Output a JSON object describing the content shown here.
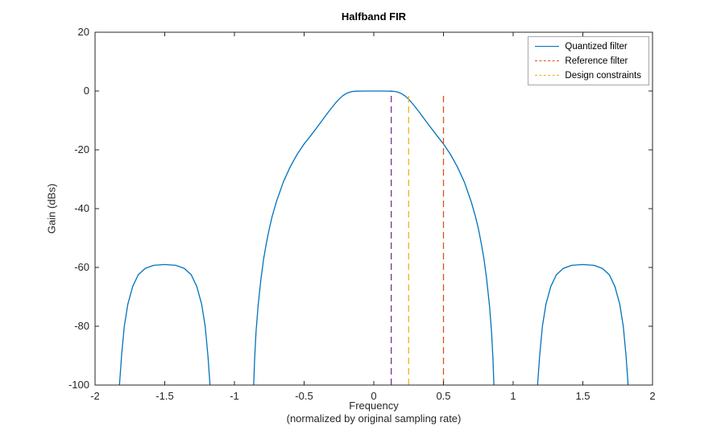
{
  "title": "Halfband FIR",
  "axes": {
    "ylabel": "Gain (dBs)",
    "xlabel_line1": "Frequency",
    "xlabel_line2": "(normalized by original sampling rate)"
  },
  "legend": [
    {
      "label": "Quantized filter",
      "color": "#0072BD",
      "style": "solid"
    },
    {
      "label": "Reference filter",
      "color": "#D95319",
      "style": "dashed"
    },
    {
      "label": "Design constraints",
      "color": "#EDB120",
      "style": "dashed"
    }
  ],
  "chart_data": {
    "type": "line",
    "title": "Halfband FIR",
    "xlabel": "Frequency (normalized by original sampling rate)",
    "ylabel": "Gain (dBs)",
    "xlim": [
      -2,
      2
    ],
    "ylim": [
      -100,
      20
    ],
    "xticks": [
      -2,
      -1.5,
      -1,
      -0.5,
      0,
      0.5,
      1,
      1.5,
      2
    ],
    "xtick_labels": [
      "-2",
      "-1.5",
      "-1",
      "-0.5",
      "0",
      "0.5",
      "1",
      "1.5",
      "2"
    ],
    "yticks": [
      20,
      0,
      -20,
      -40,
      -60,
      -80,
      -100
    ],
    "ytick_labels": [
      "20",
      "0",
      "-20",
      "-40",
      "-60",
      "-80",
      "-100"
    ],
    "grid": false,
    "legend_position": "top-right",
    "series": [
      {
        "name": "Quantized filter",
        "color": "#0072BD",
        "style": "solid",
        "segments": [
          [
            [
              -1.825,
              -100
            ],
            [
              -1.81,
              -90
            ],
            [
              -1.79,
              -80
            ],
            [
              -1.765,
              -72.5
            ],
            [
              -1.73,
              -66.5
            ],
            [
              -1.69,
              -62.5
            ],
            [
              -1.64,
              -60.3
            ],
            [
              -1.58,
              -59.3
            ],
            [
              -1.5,
              -59
            ],
            [
              -1.42,
              -59.3
            ],
            [
              -1.36,
              -60.3
            ],
            [
              -1.31,
              -62.5
            ],
            [
              -1.27,
              -66.5
            ],
            [
              -1.235,
              -72.5
            ],
            [
              -1.21,
              -80
            ],
            [
              -1.19,
              -90
            ],
            [
              -1.175,
              -100
            ]
          ],
          [
            [
              -0.862,
              -100
            ],
            [
              -0.855,
              -91
            ],
            [
              -0.845,
              -82
            ],
            [
              -0.83,
              -73
            ],
            [
              -0.81,
              -64
            ],
            [
              -0.79,
              -57
            ],
            [
              -0.77,
              -51.5
            ],
            [
              -0.75,
              -46.8
            ],
            [
              -0.73,
              -42.8
            ],
            [
              -0.7,
              -37.8
            ],
            [
              -0.65,
              -31
            ],
            [
              -0.6,
              -25.8
            ],
            [
              -0.55,
              -21.5
            ],
            [
              -0.5,
              -18
            ],
            [
              -0.45,
              -15
            ],
            [
              -0.4,
              -11.9
            ],
            [
              -0.35,
              -8.7
            ],
            [
              -0.325,
              -7.1
            ],
            [
              -0.3,
              -5.6
            ],
            [
              -0.275,
              -4.1
            ],
            [
              -0.25,
              -2.8
            ],
            [
              -0.225,
              -1.7
            ],
            [
              -0.2,
              -0.9
            ],
            [
              -0.175,
              -0.4
            ],
            [
              -0.15,
              -0.15
            ],
            [
              -0.125,
              -0.05
            ],
            [
              -0.1,
              -0.02
            ],
            [
              -0.05,
              0
            ],
            [
              0,
              0
            ],
            [
              0.05,
              0
            ],
            [
              0.1,
              -0.02
            ],
            [
              0.125,
              -0.05
            ],
            [
              0.15,
              -0.15
            ],
            [
              0.175,
              -0.4
            ],
            [
              0.2,
              -0.9
            ],
            [
              0.225,
              -1.7
            ],
            [
              0.25,
              -2.8
            ],
            [
              0.275,
              -4.1
            ],
            [
              0.3,
              -5.6
            ],
            [
              0.325,
              -7.1
            ],
            [
              0.35,
              -8.7
            ],
            [
              0.4,
              -11.9
            ],
            [
              0.45,
              -15
            ],
            [
              0.5,
              -18
            ],
            [
              0.55,
              -21.5
            ],
            [
              0.6,
              -25.8
            ],
            [
              0.65,
              -31
            ],
            [
              0.7,
              -37.8
            ],
            [
              0.73,
              -42.8
            ],
            [
              0.75,
              -46.8
            ],
            [
              0.77,
              -51.5
            ],
            [
              0.79,
              -57
            ],
            [
              0.81,
              -64
            ],
            [
              0.83,
              -73
            ],
            [
              0.845,
              -82
            ],
            [
              0.855,
              -91
            ],
            [
              0.862,
              -100
            ]
          ],
          [
            [
              1.175,
              -100
            ],
            [
              1.19,
              -90
            ],
            [
              1.21,
              -80
            ],
            [
              1.235,
              -72.5
            ],
            [
              1.27,
              -66.5
            ],
            [
              1.31,
              -62.5
            ],
            [
              1.36,
              -60.3
            ],
            [
              1.42,
              -59.3
            ],
            [
              1.5,
              -59
            ],
            [
              1.58,
              -59.3
            ],
            [
              1.64,
              -60.3
            ],
            [
              1.69,
              -62.5
            ],
            [
              1.73,
              -66.5
            ],
            [
              1.765,
              -72.5
            ],
            [
              1.79,
              -80
            ],
            [
              1.81,
              -90
            ],
            [
              1.825,
              -100
            ]
          ]
        ]
      }
    ],
    "vlines": [
      {
        "name": "passband-edge-constraint",
        "x": 0.125,
        "y0": -100,
        "y1": 0,
        "color": "#7E2F8E",
        "style": "dashed"
      },
      {
        "name": "design-constraint",
        "x": 0.25,
        "y0": -100,
        "y1": -1,
        "color": "#EDB120",
        "style": "dashed"
      },
      {
        "name": "reference-filter-cutoff",
        "x": 0.5,
        "y0": -100,
        "y1": -1.5,
        "color": "#D95319",
        "style": "dashed"
      }
    ]
  }
}
